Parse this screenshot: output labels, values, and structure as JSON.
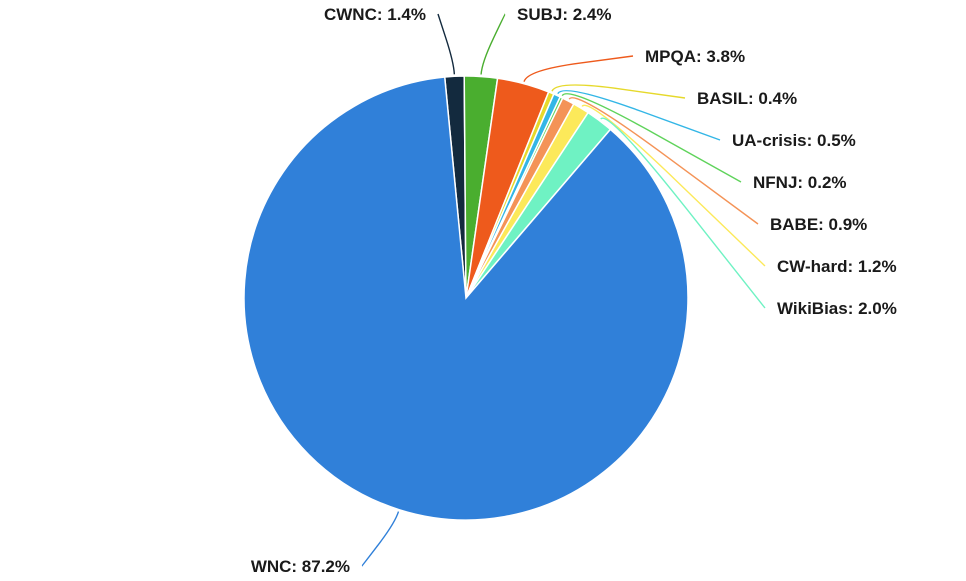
{
  "chart_data": {
    "type": "pie",
    "slices": [
      {
        "label": "CWNC",
        "value": 1.4,
        "text": "CWNC: 1.4%",
        "color": "#132a3e"
      },
      {
        "label": "SUBJ",
        "value": 2.4,
        "text": "SUBJ: 2.4%",
        "color": "#4aae2f"
      },
      {
        "label": "MPQA",
        "value": 3.8,
        "text": "MPQA: 3.8%",
        "color": "#ee5a1c"
      },
      {
        "label": "BASIL",
        "value": 0.4,
        "text": "BASIL: 0.4%",
        "color": "#e6d92b"
      },
      {
        "label": "UA-crisis",
        "value": 0.5,
        "text": "UA-crisis: 0.5%",
        "color": "#33b6e6"
      },
      {
        "label": "NFNJ",
        "value": 0.2,
        "text": "NFNJ: 0.2%",
        "color": "#5fd35b"
      },
      {
        "label": "BABE",
        "value": 0.9,
        "text": "BABE: 0.9%",
        "color": "#f49357"
      },
      {
        "label": "CW-hard",
        "value": 1.2,
        "text": "CW-hard: 1.2%",
        "color": "#fce95a"
      },
      {
        "label": "WikiBias",
        "value": 2.0,
        "text": "WikiBias: 2.0%",
        "color": "#6ff2c3"
      },
      {
        "label": "WNC",
        "value": 87.2,
        "text": "WNC: 87.2%",
        "color": "#3080d9"
      }
    ]
  }
}
